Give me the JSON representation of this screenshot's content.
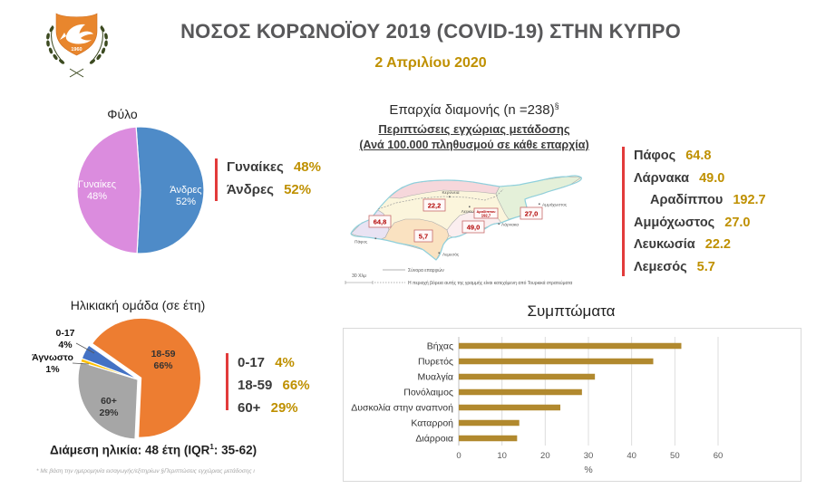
{
  "header": {
    "title": "ΝΟΣΟΣ ΚΟΡΩΝΟΪΟΥ 2019 (COVID-19) ΣΤΗΝ ΚΥΠΡΟ",
    "date": "2 Απριλίου 2020",
    "emblem_year": "1960"
  },
  "gender": {
    "title": "Φύλο",
    "start_angle": -4,
    "slices": [
      {
        "label": "Άνδρες",
        "pct": 52,
        "pct_label": "52%",
        "color": "#4E8BC8"
      },
      {
        "label": "Γυναίκες",
        "pct": 48,
        "pct_label": "48%",
        "color": "#DB8CDE"
      }
    ],
    "legend": [
      {
        "label": "Γυναίκες",
        "value": "48%"
      },
      {
        "label": "Άνδρες",
        "value": "52%"
      }
    ]
  },
  "age": {
    "title": "Ηλικιακή ομάδα (σε έτη)",
    "start_angle": -55,
    "slices": [
      {
        "label": "18-59",
        "pct": 66,
        "pct_label": "66%",
        "color": "#ED7D31",
        "explode": 4
      },
      {
        "label": "60+",
        "pct": 29,
        "pct_label": "29%",
        "color": "#A6A6A6"
      },
      {
        "label": "Άγνωστο",
        "pct": 1,
        "pct_label": "1%",
        "color": "#FFC000"
      },
      {
        "label": "0-17",
        "pct": 4,
        "pct_label": "4%",
        "color": "#4472C4"
      }
    ],
    "legend": [
      {
        "label": "0-17",
        "value": "4%"
      },
      {
        "label": "18-59",
        "value": "66%"
      },
      {
        "label": "60+",
        "value": "29%"
      }
    ]
  },
  "median_age": {
    "prefix": "Διάμεση ηλικία: 48 έτη (IQR",
    "sup": "1",
    "suffix": ": 35-62)"
  },
  "map": {
    "title": "Επαρχία διαμονής (n =238)",
    "title_sup": "§",
    "subtitle1": "Περιπτώσεις εγχώριας μετάδοσης",
    "subtitle2": "(Ανά 100.000 πληθυσμού σε κάθε επαρχία)",
    "values": {
      "pafos": "64,8",
      "nicosia": "22,2",
      "limassol": "5,7",
      "larnaca": "49,0",
      "famagusta": "27,0",
      "aradippou_name": "Αραδίππου",
      "aradippou_value": "192,7"
    },
    "towns": {
      "kyrenia": "Κερύνεια",
      "nicosia": "Λευκωσία",
      "famagusta": "Αμμόχωστος",
      "larnaca": "Λάρνακα",
      "pafos": "Πάφος",
      "limassol": "Λεμεσός"
    },
    "scale_label": "30 Χλμ",
    "legend_borders": "Σύνορα επαρχιών",
    "legend_occupied": "Η περιοχή βόρεια αυτής της γραμμής είναι κατεχόμενη από Τουρκικά στρατεύματα"
  },
  "district_list": [
    {
      "name": "Πάφος",
      "value": "64.8",
      "indent": false
    },
    {
      "name": "Λάρνακα",
      "value": "49.0",
      "indent": false
    },
    {
      "name": "Αραδίππου",
      "value": "192.7",
      "indent": true
    },
    {
      "name": "Αμμόχωστος",
      "value": "27.0",
      "indent": false
    },
    {
      "name": "Λευκωσία",
      "value": "22.2",
      "indent": false
    },
    {
      "name": "Λεμεσός",
      "value": "5.7",
      "indent": false
    }
  ],
  "symptoms": {
    "title": "Συμπτώματα",
    "categories": [
      "Βήχας",
      "Πυρετός",
      "Μυαλγία",
      "Πονόλαιμος",
      "Δυσκολία στην αναπνοή",
      "Καταρροή",
      "Διάρροια"
    ],
    "values": [
      51.5,
      45,
      31.5,
      28.5,
      23.5,
      14,
      13.5
    ],
    "xticks": [
      0,
      10,
      20,
      30,
      40,
      50,
      60
    ],
    "xlabel": "%",
    "xlim": [
      0,
      60
    ]
  },
  "footnote": "* Με βάση την ημερομηνία εισαγωγής/εξιτηρίων   §Περιπτώσεις εγχώριας μετάδοσης ι",
  "colors": {
    "accent_red": "#E23B3B",
    "gold": "#BF9000",
    "dark_label": "#3B3B3B",
    "title_gray": "#58585A",
    "bar": "#B1892E",
    "gender_female": "#DB8CDE",
    "gender_male": "#4E8BC8",
    "age_18_59": "#ED7D31",
    "age_60plus": "#A6A6A6",
    "age_unknown": "#FFC000",
    "age_0_17": "#4472C4",
    "map_value_red": "#B00000"
  },
  "chart_data": [
    {
      "type": "pie",
      "title": "Φύλο",
      "labels": [
        "Γυναίκες",
        "Άνδρες"
      ],
      "values": [
        48,
        52
      ],
      "colors": [
        "#DB8CDE",
        "#4E8BC8"
      ],
      "legend_position": "right"
    },
    {
      "type": "pie",
      "title": "Ηλικιακή ομάδα (σε έτη)",
      "labels": [
        "0-17",
        "18-59",
        "60+",
        "Άγνωστο"
      ],
      "values": [
        4,
        66,
        29,
        1
      ],
      "colors": [
        "#4472C4",
        "#ED7D31",
        "#A6A6A6",
        "#FFC000"
      ],
      "note": "Διάμεση ηλικία: 48 έτη (IQR1: 35-62)",
      "legend_position": "right"
    },
    {
      "type": "bar",
      "orientation": "horizontal",
      "title": "Συμπτώματα",
      "categories": [
        "Βήχας",
        "Πυρετός",
        "Μυαλγία",
        "Πονόλαιμος",
        "Δυσκολία στην αναπνοή",
        "Καταρροή",
        "Διάρροια"
      ],
      "values": [
        51.5,
        45,
        31.5,
        28.5,
        23.5,
        14,
        13.5
      ],
      "xlabel": "%",
      "xlim": [
        0,
        60
      ],
      "grid": true
    },
    {
      "type": "table",
      "title": "Επαρχία διαμονής (n =238)§ — Περιπτώσεις εγχώριας μετάδοσης (Ανά 100.000 πληθυσμού σε κάθε επαρχία)",
      "rows": [
        [
          "Πάφος",
          64.8
        ],
        [
          "Λάρνακα",
          49.0
        ],
        [
          "Αραδίππου",
          192.7
        ],
        [
          "Αμμόχωστος",
          27.0
        ],
        [
          "Λευκωσία",
          22.2
        ],
        [
          "Λεμεσός",
          5.7
        ]
      ]
    }
  ]
}
